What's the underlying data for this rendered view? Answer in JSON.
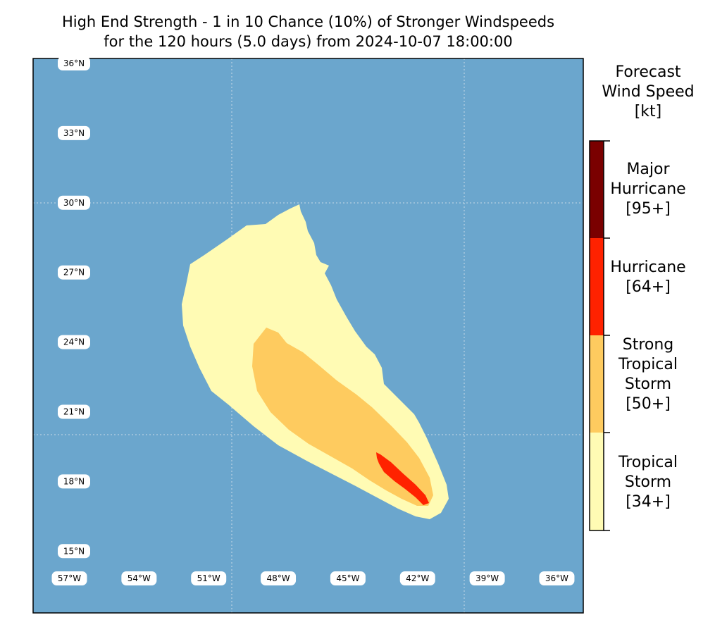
{
  "title": {
    "line1": "High End Strength - 1 in 10 Chance (10%) of Stronger Windspeeds",
    "line2": "for the 120 hours (5.0 days) from 2024-10-07 18:00:00"
  },
  "map": {
    "lat_labels": [
      "36°N",
      "33°N",
      "30°N",
      "27°N",
      "24°N",
      "21°N",
      "18°N",
      "15°N"
    ],
    "lon_labels": [
      "57°W",
      "54°W",
      "51°W",
      "48°W",
      "45°W",
      "42°W",
      "39°W",
      "36°W"
    ],
    "gridlines": "dotted",
    "ocean_color": "#6ba6cd"
  },
  "colorbar": {
    "title": [
      "Forecast",
      "Wind Speed",
      "[kt]"
    ],
    "categories": [
      {
        "name": "major-hurricane",
        "lines": [
          "Major",
          "Hurricane",
          "[95+]"
        ],
        "threshold_kt": 95,
        "color": "#7a0000"
      },
      {
        "name": "hurricane",
        "lines": [
          "Hurricane",
          "[64+]"
        ],
        "threshold_kt": 64,
        "color": "#ff2200"
      },
      {
        "name": "strong-tropical-storm",
        "lines": [
          "Strong",
          "Tropical",
          "Storm",
          "[50+]"
        ],
        "threshold_kt": 50,
        "color": "#fecb5f"
      },
      {
        "name": "tropical-storm",
        "lines": [
          "Tropical",
          "Storm",
          "[34+]"
        ],
        "threshold_kt": 34,
        "color": "#fffbb4"
      }
    ]
  }
}
